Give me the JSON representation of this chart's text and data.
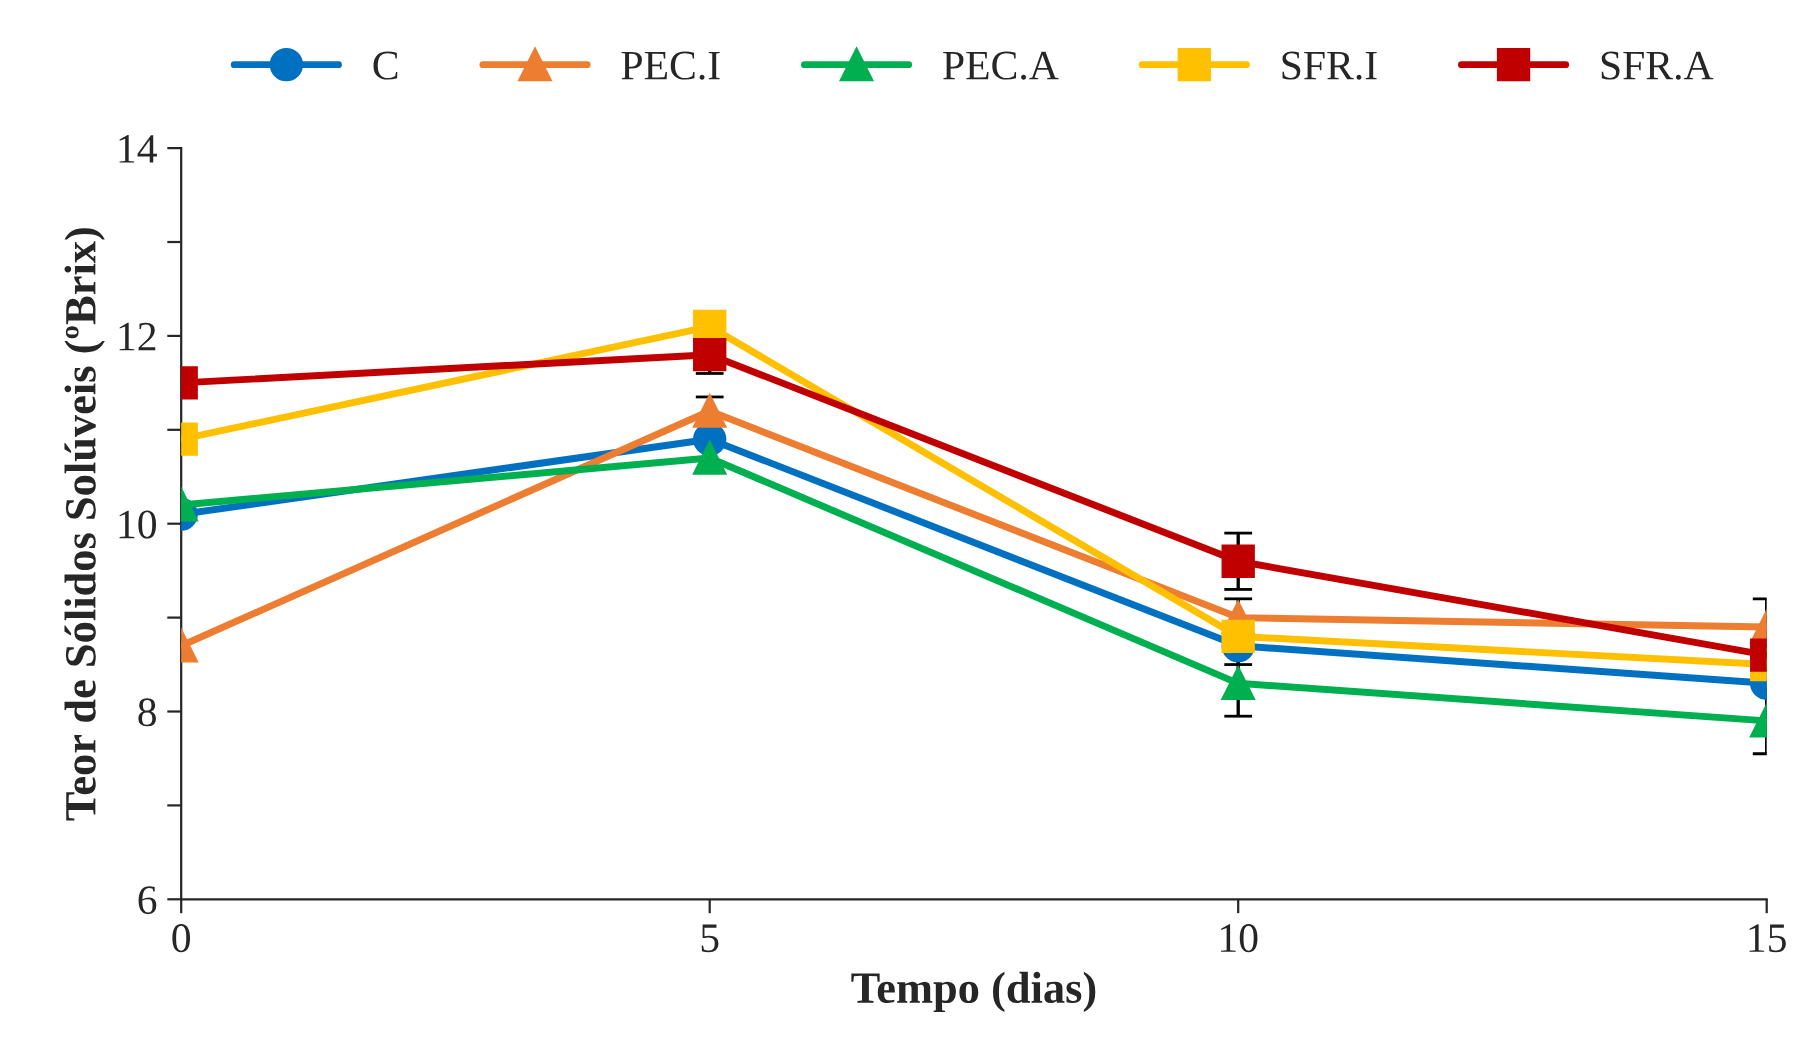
{
  "chart_data": {
    "type": "line",
    "xlabel": "Tempo (dias)",
    "ylabel": "Teor de Sólidos Solúveis (ºBrix)",
    "x": [
      0,
      5,
      10,
      15
    ],
    "series": [
      {
        "name": "C",
        "color": "#0070c0",
        "marker": "circle",
        "values": [
          10.1,
          10.9,
          8.7,
          8.3
        ],
        "errors": [
          null,
          null,
          0.2,
          null
        ]
      },
      {
        "name": "PEC.I",
        "color": "#ed7d31",
        "marker": "triangle",
        "values": [
          8.7,
          11.2,
          9.0,
          8.9
        ],
        "errors": [
          null,
          0.15,
          0.2,
          0.3
        ]
      },
      {
        "name": "PEC.A",
        "color": "#00b050",
        "marker": "triangle",
        "values": [
          10.2,
          10.7,
          8.3,
          7.9
        ],
        "errors": [
          null,
          null,
          0.35,
          0.35
        ]
      },
      {
        "name": "SFR.I",
        "color": "#ffc000",
        "marker": "square",
        "values": [
          10.9,
          12.1,
          8.8,
          8.5
        ],
        "errors": [
          null,
          null,
          null,
          null
        ]
      },
      {
        "name": "SFR.A",
        "color": "#c00000",
        "marker": "square",
        "values": [
          11.5,
          11.8,
          9.6,
          8.6
        ],
        "errors": [
          null,
          0.2,
          0.3,
          null
        ]
      }
    ],
    "xlim": [
      0,
      15
    ],
    "xticks": [
      0,
      5,
      10,
      15
    ],
    "ylim": [
      6,
      14
    ],
    "yticks": [
      6,
      {
        "value": 7,
        "label": null
      },
      8,
      {
        "value": 9,
        "label": null
      },
      10,
      {
        "value": 11,
        "label": null
      },
      12,
      {
        "value": 13,
        "label": null
      },
      14
    ],
    "grid": false,
    "legend": "top",
    "line_style": "solid"
  }
}
